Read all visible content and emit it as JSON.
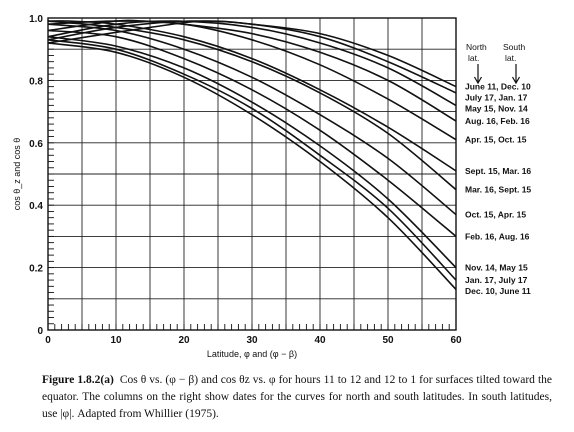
{
  "chart_data": {
    "type": "line",
    "xlabel": "Latitude, φ and (φ − β)",
    "ylabel": "cos θ_z and cos θ",
    "xlim": [
      0,
      60
    ],
    "ylim": [
      0,
      1.0
    ],
    "x_ticks": [
      0,
      10,
      20,
      30,
      40,
      50,
      60
    ],
    "y_ticks": [
      0,
      0.2,
      0.4,
      0.6,
      0.8,
      1.0
    ],
    "y_tick_labels": [
      "0",
      "0.2",
      "0.4",
      "0.6",
      "0.8",
      "1.0"
    ],
    "grid": true,
    "column_headers": {
      "north": [
        "North",
        "lat."
      ],
      "south": [
        "South",
        "lat."
      ]
    },
    "series": [
      {
        "name": "June 11, Dec. 10",
        "x": [
          0,
          15,
          23,
          30,
          40,
          50,
          60
        ],
        "y": [
          0.92,
          0.97,
          0.99,
          0.98,
          0.95,
          0.88,
          0.78
        ]
      },
      {
        "name": "July 17, Jan. 17",
        "x": [
          0,
          10,
          21,
          30,
          40,
          50,
          60
        ],
        "y": [
          0.93,
          0.97,
          0.99,
          0.98,
          0.94,
          0.86,
          0.76
        ]
      },
      {
        "name": "May 15, Nov. 14",
        "x": [
          0,
          10,
          19,
          30,
          40,
          50,
          60
        ],
        "y": [
          0.94,
          0.98,
          0.99,
          0.97,
          0.92,
          0.84,
          0.72
        ]
      },
      {
        "name": "Aug. 16, Feb. 16",
        "x": [
          0,
          10,
          14,
          20,
          30,
          40,
          50,
          60
        ],
        "y": [
          0.96,
          0.99,
          0.99,
          0.98,
          0.95,
          0.89,
          0.8,
          0.67
        ]
      },
      {
        "name": "Apr. 15, Oct. 15",
        "x": [
          0,
          10,
          20,
          30,
          40,
          50,
          60
        ],
        "y": [
          0.98,
          0.99,
          0.98,
          0.93,
          0.85,
          0.74,
          0.61
        ]
      },
      {
        "name": "Sept. 15, Mar. 16",
        "x": [
          0,
          3,
          10,
          20,
          30,
          40,
          50,
          60
        ],
        "y": [
          0.99,
          0.99,
          0.98,
          0.94,
          0.87,
          0.77,
          0.65,
          0.51
        ]
      },
      {
        "name": "Mar. 16, Sept. 15",
        "x": [
          0,
          10,
          20,
          30,
          40,
          50,
          60
        ],
        "y": [
          0.99,
          0.97,
          0.93,
          0.86,
          0.76,
          0.63,
          0.45
        ]
      },
      {
        "name": "Oct. 15, Apr. 15",
        "x": [
          0,
          10,
          20,
          30,
          40,
          50,
          60
        ],
        "y": [
          0.98,
          0.96,
          0.9,
          0.81,
          0.69,
          0.55,
          0.37
        ]
      },
      {
        "name": "Feb. 16, Aug. 16",
        "x": [
          0,
          10,
          20,
          30,
          40,
          50,
          60
        ],
        "y": [
          0.96,
          0.94,
          0.87,
          0.77,
          0.64,
          0.48,
          0.3
        ]
      },
      {
        "name": "Nov. 14, May 15",
        "x": [
          0,
          10,
          20,
          30,
          40,
          50,
          60
        ],
        "y": [
          0.94,
          0.91,
          0.84,
          0.73,
          0.59,
          0.42,
          0.2
        ]
      },
      {
        "name": "Jan. 17, July 17",
        "x": [
          0,
          10,
          20,
          30,
          40,
          50,
          60
        ],
        "y": [
          0.93,
          0.9,
          0.82,
          0.71,
          0.56,
          0.39,
          0.16
        ]
      },
      {
        "name": "Dec. 10, June 11",
        "x": [
          0,
          10,
          20,
          30,
          40,
          50,
          60
        ],
        "y": [
          0.92,
          0.89,
          0.81,
          0.69,
          0.54,
          0.36,
          0.13
        ]
      }
    ]
  },
  "caption": {
    "figure_number": "Figure 1.8.2(a)",
    "text": "Cos θ vs. (φ − β) and cos θz vs. φ for hours 11 to 12 and 12 to 1 for surfaces tilted toward the equator. The columns on the right show dates for the curves for north and south latitudes. In south latitudes, use |φ|. Adapted from Whillier (1975)."
  }
}
